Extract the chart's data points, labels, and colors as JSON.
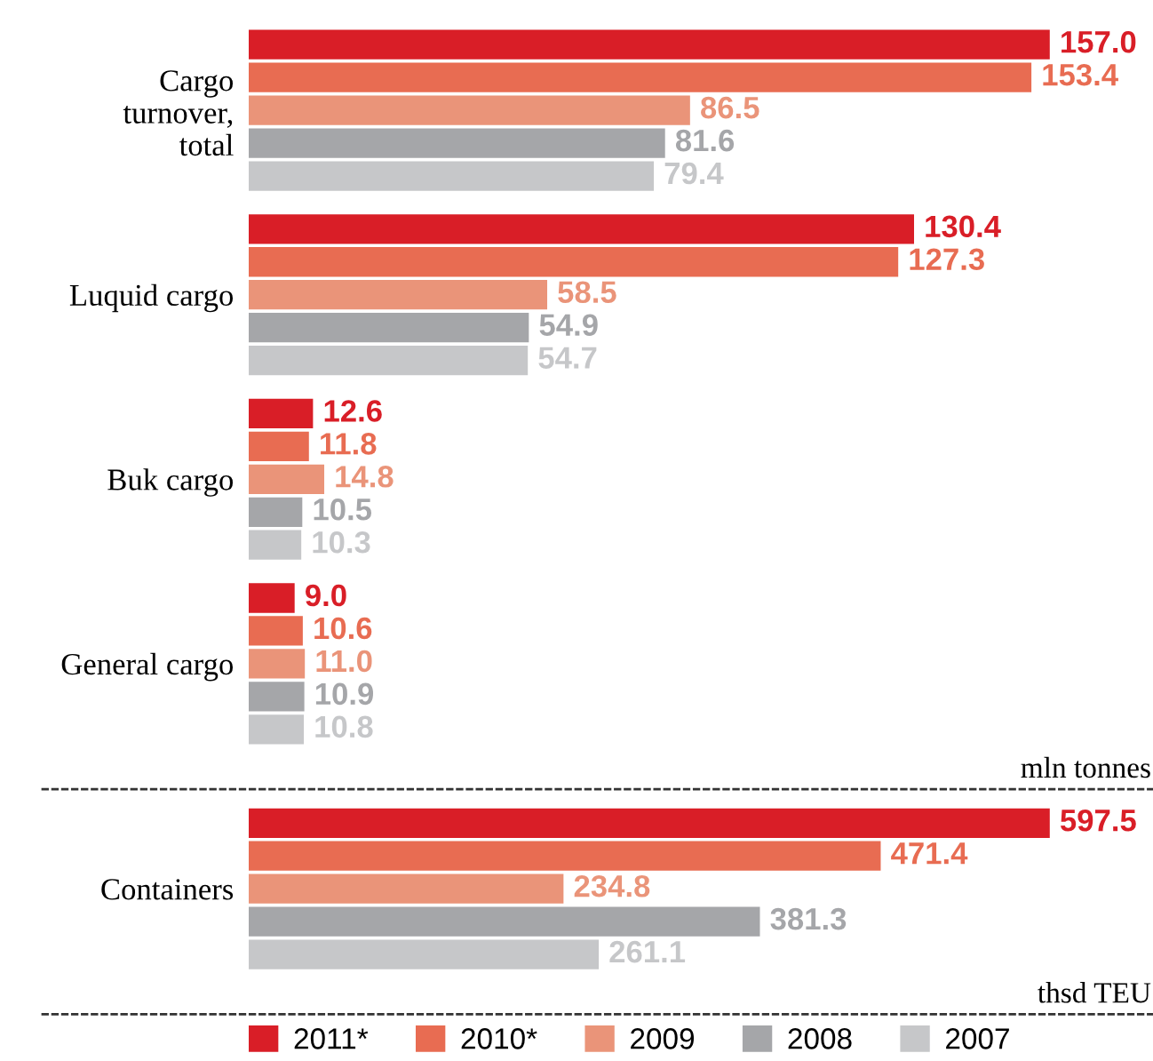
{
  "chart_data": [
    {
      "type": "bar",
      "orientation": "horizontal",
      "categories": [
        "Cargo\nturnover,\ntotal",
        "Luquid cargo",
        "Buk cargo",
        "General cargo"
      ],
      "xlabel": "mln tonnes",
      "legend": "bottom",
      "series": [
        {
          "name": "2011*",
          "color": "#d91e27",
          "values": [
            157.0,
            130.4,
            12.6,
            9.0
          ],
          "value_labels": [
            "157.0",
            "130.4",
            "12.6",
            "9.0"
          ]
        },
        {
          "name": "2010*",
          "color": "#e86c52",
          "values": [
            153.4,
            127.3,
            11.8,
            10.6
          ],
          "value_labels": [
            "153.4",
            "127.3",
            "11.8",
            "10.6"
          ]
        },
        {
          "name": "2009",
          "color": "#ea9479",
          "values": [
            86.5,
            58.5,
            14.8,
            11.0
          ],
          "value_labels": [
            "86.5",
            "58.5",
            "14.8",
            "11.0"
          ]
        },
        {
          "name": "2008",
          "color": "#a5a6a9",
          "values": [
            81.6,
            54.9,
            10.5,
            10.9
          ],
          "value_labels": [
            "81.6",
            "54.9",
            "10.5",
            "10.9"
          ]
        },
        {
          "name": "2007",
          "color": "#c6c7c9",
          "values": [
            79.4,
            54.7,
            10.3,
            10.8
          ],
          "value_labels": [
            "79.4",
            "54.7",
            "10.3",
            "10.8"
          ]
        }
      ]
    },
    {
      "type": "bar",
      "orientation": "horizontal",
      "categories": [
        "Containers"
      ],
      "xlabel": "thsd TEU",
      "series": [
        {
          "color": "#d91e27",
          "values": [
            597.5
          ],
          "value_labels": [
            "597.5"
          ]
        },
        {
          "color": "#e86c52",
          "values": [
            471.4
          ],
          "value_labels": [
            "471.4"
          ]
        },
        {
          "color": "#ea9479",
          "values": [
            234.8
          ],
          "value_labels": [
            "234.8"
          ]
        },
        {
          "color": "#a5a6a9",
          "values": [
            381.3
          ],
          "value_labels": [
            "381.3"
          ]
        },
        {
          "color": "#c6c7c9",
          "values": [
            261.1
          ],
          "value_labels": [
            "261.1"
          ]
        }
      ]
    }
  ]
}
